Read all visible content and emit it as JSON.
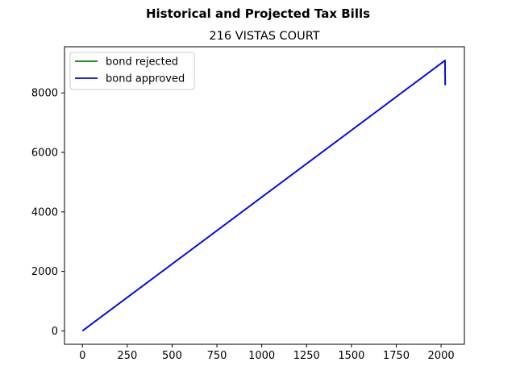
{
  "chart_data": {
    "type": "line",
    "suptitle": "Historical and Projected Tax Bills",
    "title": "216 VISTAS COURT",
    "xlabel": "",
    "ylabel": "",
    "xlim": [
      -100,
      2130
    ],
    "ylim": [
      -450,
      9550
    ],
    "xticks": [
      0,
      250,
      500,
      750,
      1000,
      1250,
      1500,
      1750,
      2000
    ],
    "yticks": [
      0,
      2000,
      4000,
      6000,
      8000
    ],
    "grid": false,
    "legend_position": "upper left",
    "series": [
      {
        "name": "bond rejected",
        "color": "#008000",
        "x": [
          0,
          2022,
          2023
        ],
        "y": [
          0,
          9090,
          8260
        ]
      },
      {
        "name": "bond approved",
        "color": "#0000ff",
        "x": [
          0,
          2022,
          2023
        ],
        "y": [
          0,
          9090,
          8260
        ]
      }
    ]
  }
}
